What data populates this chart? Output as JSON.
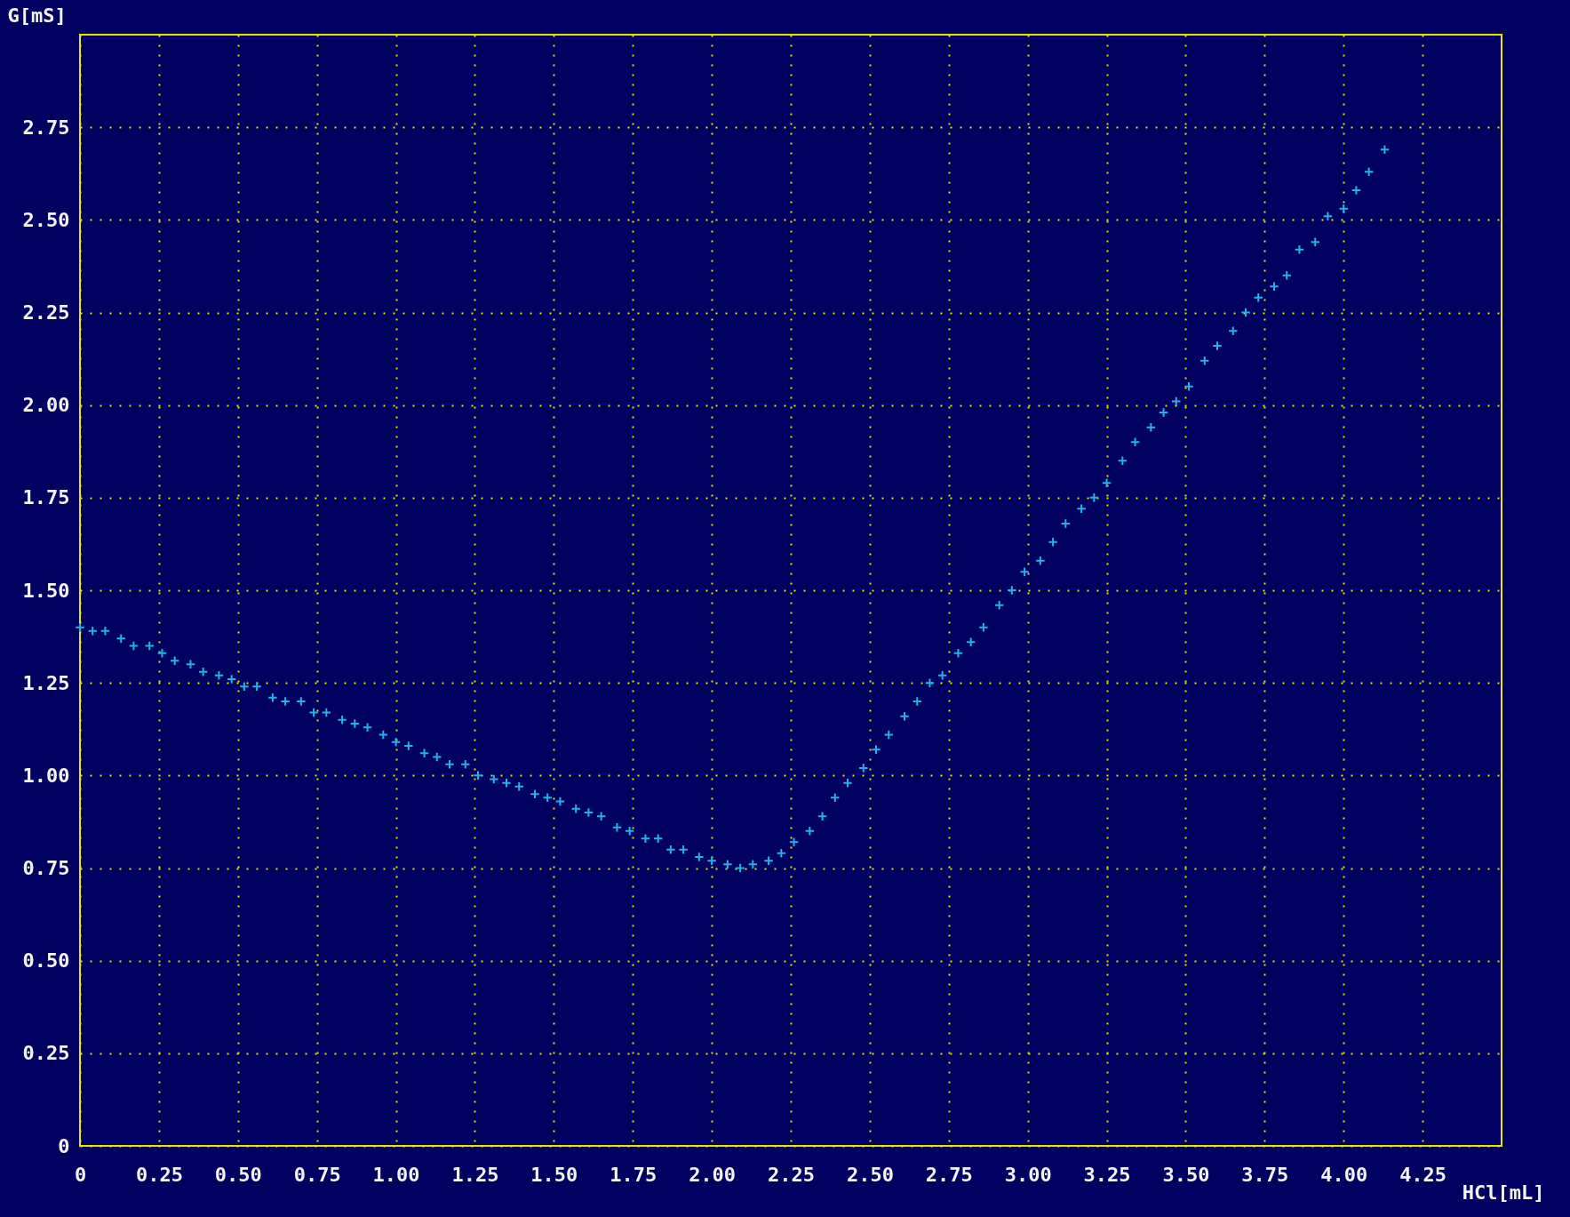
{
  "chart_data": {
    "type": "scatter",
    "xlabel": "HCl[mL]",
    "ylabel": "G[mS]",
    "xlim": [
      0,
      4.5
    ],
    "ylim": [
      0,
      3
    ],
    "xticks": [
      0,
      {
        "value": 0.25,
        "label": "0.25"
      },
      {
        "value": 0.5,
        "label": "0.50"
      },
      0.75,
      {
        "value": 1,
        "label": "1.00"
      },
      1.25,
      {
        "value": 1.5,
        "label": "1.50"
      },
      1.75,
      {
        "value": 2,
        "label": "2.00"
      },
      2.25,
      {
        "value": 2.5,
        "label": "2.50"
      },
      2.75,
      {
        "value": 3,
        "label": "3.00"
      },
      3.25,
      {
        "value": 3.5,
        "label": "3.50"
      },
      3.75,
      {
        "value": 4,
        "label": "4.00"
      },
      4.25
    ],
    "yticks": [
      0,
      0.25,
      {
        "value": 0.5,
        "label": "0.50"
      },
      0.75,
      {
        "value": 1,
        "label": "1.00"
      },
      1.25,
      {
        "value": 1.5,
        "label": "1.50"
      },
      1.75,
      {
        "value": 2,
        "label": "2.00"
      },
      2.25,
      {
        "value": 2.5,
        "label": "2.50"
      },
      2.75
    ],
    "grid": true,
    "marker": "cross",
    "series": [
      {
        "color": "#1eb4e6",
        "x": [
          0,
          0.04,
          0.08,
          0.13,
          0.17,
          0.22,
          0.26,
          0.3,
          0.35,
          0.39,
          0.44,
          0.48,
          0.52,
          0.56,
          0.61,
          0.65,
          0.7,
          0.74,
          0.78,
          0.83,
          0.87,
          0.91,
          0.96,
          1.0,
          1.04,
          1.09,
          1.13,
          1.17,
          1.22,
          1.26,
          1.31,
          1.35,
          1.39,
          1.44,
          1.48,
          1.52,
          1.57,
          1.61,
          1.65,
          1.7,
          1.74,
          1.79,
          1.83,
          1.87,
          1.91,
          1.96,
          2.0,
          2.05,
          2.09,
          2.13,
          2.18,
          2.22,
          2.26,
          2.31,
          2.35,
          2.39,
          2.43,
          2.48,
          2.52,
          2.56,
          2.61,
          2.65,
          2.69,
          2.73,
          2.78,
          2.82,
          2.86,
          2.91,
          2.95,
          2.99,
          3.04,
          3.08,
          3.12,
          3.17,
          3.21,
          3.25,
          3.3,
          3.34,
          3.39,
          3.43,
          3.47,
          3.51,
          3.56,
          3.6,
          3.65,
          3.69,
          3.73,
          3.78,
          3.82,
          3.86,
          3.91,
          3.95,
          4.0,
          4.04,
          4.08,
          4.13
        ],
        "values": [
          1.4,
          1.39,
          1.39,
          1.37,
          1.35,
          1.35,
          1.33,
          1.31,
          1.3,
          1.28,
          1.27,
          1.26,
          1.24,
          1.24,
          1.21,
          1.2,
          1.2,
          1.17,
          1.17,
          1.15,
          1.14,
          1.13,
          1.11,
          1.09,
          1.08,
          1.06,
          1.05,
          1.03,
          1.03,
          1.0,
          0.99,
          0.98,
          0.97,
          0.95,
          0.94,
          0.93,
          0.91,
          0.9,
          0.89,
          0.86,
          0.85,
          0.83,
          0.83,
          0.8,
          0.8,
          0.78,
          0.77,
          0.76,
          0.75,
          0.76,
          0.77,
          0.79,
          0.82,
          0.85,
          0.89,
          0.94,
          0.98,
          1.02,
          1.07,
          1.11,
          1.16,
          1.2,
          1.25,
          1.27,
          1.33,
          1.36,
          1.4,
          1.46,
          1.5,
          1.55,
          1.58,
          1.63,
          1.68,
          1.72,
          1.75,
          1.79,
          1.85,
          1.9,
          1.94,
          1.98,
          2.01,
          2.05,
          2.12,
          2.16,
          2.2,
          2.25,
          2.29,
          2.32,
          2.35,
          2.42,
          2.44,
          2.51,
          2.53,
          2.58,
          2.63,
          2.69
        ]
      }
    ]
  }
}
